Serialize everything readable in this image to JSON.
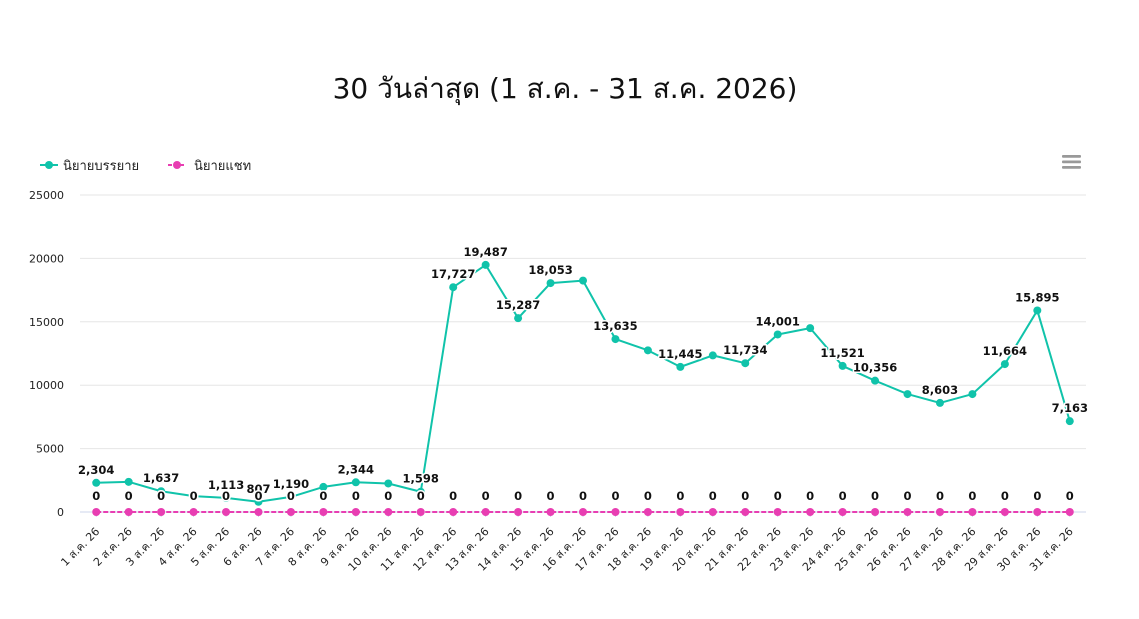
{
  "chart_data": {
    "type": "line",
    "title": "30 วันล่าสุด (1 ส.ค. - 31 ส.ค. 2026)",
    "categories": [
      "1 ส.ค. 26",
      "2 ส.ค. 26",
      "3 ส.ค. 26",
      "4 ส.ค. 26",
      "5 ส.ค. 26",
      "6 ส.ค. 26",
      "7 ส.ค. 26",
      "8 ส.ค. 26",
      "9 ส.ค. 26",
      "10 ส.ค. 26",
      "11 ส.ค. 26",
      "12 ส.ค. 26",
      "13 ส.ค. 26",
      "14 ส.ค. 26",
      "15 ส.ค. 26",
      "16 ส.ค. 26",
      "17 ส.ค. 26",
      "18 ส.ค. 26",
      "19 ส.ค. 26",
      "20 ส.ค. 26",
      "21 ส.ค. 26",
      "22 ส.ค. 26",
      "23 ส.ค. 26",
      "24 ส.ค. 26",
      "25 ส.ค. 26",
      "26 ส.ค. 26",
      "27 ส.ค. 26",
      "28 ส.ค. 26",
      "29 ส.ค. 26",
      "30 ส.ค. 26",
      "31 ส.ค. 26"
    ],
    "series": [
      {
        "name": "นิยายบรรยาย",
        "color": "#10c3aa",
        "values": [
          2304,
          2380,
          1637,
          1250,
          1113,
          807,
          1190,
          1980,
          2344,
          2250,
          1598,
          17727,
          19487,
          15287,
          18053,
          18250,
          13635,
          12750,
          11445,
          12350,
          11734,
          14001,
          14500,
          11521,
          10356,
          9300,
          8603,
          9300,
          11664,
          15895,
          7163
        ],
        "labels": [
          "2,304",
          "",
          "1,637",
          "",
          "1,113",
          "807",
          "1,190",
          "",
          "2,344",
          "",
          "1,598",
          "17,727",
          "19,487",
          "15,287",
          "18,053",
          "",
          "13,635",
          "",
          "11,445",
          "",
          "11,734",
          "14,001",
          "",
          "11,521",
          "10,356",
          "",
          "8,603",
          "",
          "11,664",
          "15,895",
          "7,163"
        ]
      },
      {
        "name": "นิยายแชท",
        "color": "#e83eb2",
        "values": [
          0,
          0,
          0,
          0,
          0,
          0,
          0,
          0,
          0,
          0,
          0,
          0,
          0,
          0,
          0,
          0,
          0,
          0,
          0,
          0,
          0,
          0,
          0,
          0,
          0,
          0,
          0,
          0,
          0,
          0,
          0
        ],
        "labels": [
          "0",
          "0",
          "0",
          "0",
          "0",
          "0",
          "0",
          "0",
          "0",
          "0",
          "0",
          "0",
          "0",
          "0",
          "0",
          "0",
          "0",
          "0",
          "0",
          "0",
          "0",
          "0",
          "0",
          "0",
          "0",
          "0",
          "0",
          "0",
          "0",
          "0",
          "0"
        ]
      }
    ],
    "yticks": [
      "0",
      "5000",
      "10000",
      "15000",
      "20000",
      "25000"
    ],
    "ylim": [
      0,
      25000
    ],
    "grid": true,
    "legend": "top-left"
  },
  "icons": {
    "menu": "hamburger-menu-icon"
  }
}
